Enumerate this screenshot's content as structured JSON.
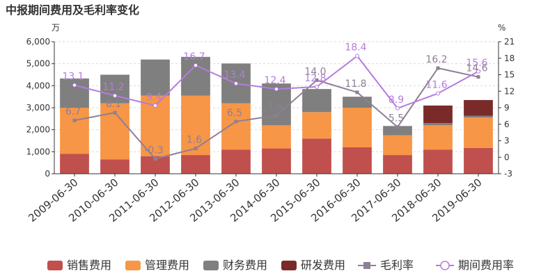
{
  "chart_data": {
    "type": "bar",
    "title": "中报期间费用及毛利率变化",
    "left_unit": "万",
    "right_unit": "%",
    "categories": [
      "2009-06-30",
      "2010-06-30",
      "2011-06-30",
      "2012-06-30",
      "2013-06-30",
      "2014-06-30",
      "2015-06-30",
      "2016-06-30",
      "2017-06-30",
      "2018-06-30",
      "2019-06-30"
    ],
    "left_axis": {
      "min": 0,
      "max": 6000,
      "ticks": [
        "0",
        "1,000",
        "2,000",
        "3,000",
        "4,000",
        "5,000",
        "6,000"
      ]
    },
    "right_axis": {
      "min": -3,
      "max": 21,
      "ticks": [
        "-3",
        "0",
        "3",
        "6",
        "9",
        "12",
        "15",
        "18",
        "21"
      ]
    },
    "stacked_series": [
      {
        "name": "销售费用",
        "color": "#c0504d",
        "values": [
          900,
          650,
          800,
          850,
          1100,
          1150,
          1600,
          1200,
          850,
          1100,
          1170
        ]
      },
      {
        "name": "管理费用",
        "color": "#f79646",
        "values": [
          2100,
          2550,
          2750,
          2700,
          2100,
          1050,
          1200,
          1800,
          900,
          1100,
          1380
        ]
      },
      {
        "name": "财务费用",
        "color": "#7f7f7f",
        "values": [
          1330,
          1300,
          1640,
          1760,
          1810,
          1900,
          1050,
          500,
          420,
          100,
          80
        ]
      },
      {
        "name": "研发费用",
        "color": "#7b2a2a",
        "values": [
          0,
          0,
          0,
          0,
          0,
          0,
          0,
          0,
          0,
          800,
          720
        ]
      }
    ],
    "line_series": [
      {
        "name": "毛利率",
        "color": "#8e7f95",
        "marker": "square",
        "values": [
          6.7,
          8.1,
          -0.3,
          1.6,
          6.5,
          7.6,
          14.0,
          11.8,
          5.5,
          16.2,
          14.6
        ],
        "labels": [
          "6.7",
          "8.1",
          "-0.3",
          "1.6",
          "6.5",
          "7.6",
          "14.0",
          "11.8",
          "5.5",
          "16.2",
          "14.6"
        ]
      },
      {
        "name": "期间费用率",
        "color": "#b47cdd",
        "marker": "circle",
        "values": [
          13.1,
          11.2,
          9.4,
          16.7,
          13.4,
          12.4,
          12.8,
          18.4,
          8.9,
          11.6,
          15.6
        ],
        "labels": [
          "13.1",
          "11.2",
          "9.4",
          "16.7",
          "13.4",
          "12.4",
          "12.8",
          "18.4",
          "8.9",
          "11.6",
          "15.6"
        ]
      }
    ],
    "legend_position": "bottom"
  }
}
